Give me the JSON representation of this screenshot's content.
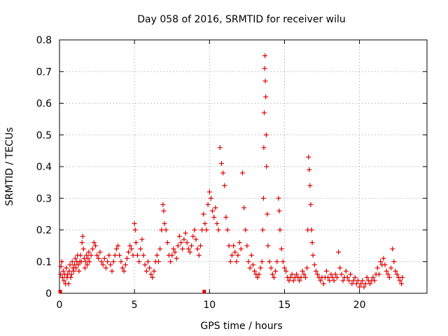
{
  "chart_data": {
    "type": "scatter",
    "title": "Day 058 of 2016, SRMTID for receiver wilu",
    "xlabel": "GPS time / hours",
    "ylabel": "SRMTID / TECUs",
    "xlim": [
      0,
      24.5
    ],
    "ylim": [
      0,
      0.8
    ],
    "x_ticks": [
      0,
      5,
      10,
      15,
      20
    ],
    "x_tick_labels": [
      "0",
      "5",
      "10",
      "15",
      "20"
    ],
    "y_ticks": [
      0,
      0.1,
      0.2,
      0.3,
      0.4,
      0.5,
      0.6,
      0.7,
      0.8
    ],
    "y_tick_labels": [
      "0",
      "0.1",
      "0.2",
      "0.3",
      "0.4",
      "0.5",
      "0.6",
      "0.7",
      "0.8"
    ],
    "grid": true,
    "marker": "plus",
    "color": "#e00000",
    "series": [
      {
        "name": "SRMTID",
        "points": [
          [
            0.05,
            0.0
          ],
          [
            0.08,
            0.06
          ],
          [
            0.1,
            0.085
          ],
          [
            0.15,
            0.1
          ],
          [
            0.2,
            0.05
          ],
          [
            0.25,
            0.07
          ],
          [
            0.3,
            0.04
          ],
          [
            0.35,
            0.06
          ],
          [
            0.4,
            0.03
          ],
          [
            0.45,
            0.08
          ],
          [
            0.5,
            0.05
          ],
          [
            0.55,
            0.06
          ],
          [
            0.6,
            0.03
          ],
          [
            0.65,
            0.07
          ],
          [
            0.7,
            0.09
          ],
          [
            0.75,
            0.05
          ],
          [
            0.8,
            0.06
          ],
          [
            0.85,
            0.1
          ],
          [
            0.9,
            0.08
          ],
          [
            0.95,
            0.07
          ],
          [
            1.0,
            0.09
          ],
          [
            1.05,
            0.11
          ],
          [
            1.1,
            0.08
          ],
          [
            1.15,
            0.1
          ],
          [
            1.2,
            0.12
          ],
          [
            1.25,
            0.09
          ],
          [
            1.3,
            0.07
          ],
          [
            1.35,
            0.1
          ],
          [
            1.4,
            0.12
          ],
          [
            1.45,
            0.1
          ],
          [
            1.5,
            0.16
          ],
          [
            1.55,
            0.18
          ],
          [
            1.6,
            0.14
          ],
          [
            1.65,
            0.11
          ],
          [
            1.7,
            0.08
          ],
          [
            1.75,
            0.1
          ],
          [
            1.8,
            0.12
          ],
          [
            1.85,
            0.09
          ],
          [
            1.9,
            0.11
          ],
          [
            1.95,
            0.13
          ],
          [
            2.0,
            0.1
          ],
          [
            2.1,
            0.12
          ],
          [
            2.2,
            0.14
          ],
          [
            2.3,
            0.16
          ],
          [
            2.4,
            0.15
          ],
          [
            2.5,
            0.12
          ],
          [
            2.6,
            0.11
          ],
          [
            2.7,
            0.13
          ],
          [
            2.8,
            0.1
          ],
          [
            2.9,
            0.09
          ],
          [
            3.0,
            0.11
          ],
          [
            3.1,
            0.08
          ],
          [
            3.2,
            0.1
          ],
          [
            3.3,
            0.12
          ],
          [
            3.4,
            0.09
          ],
          [
            3.5,
            0.07
          ],
          [
            3.6,
            0.1
          ],
          [
            3.7,
            0.12
          ],
          [
            3.8,
            0.14
          ],
          [
            3.9,
            0.15
          ],
          [
            4.0,
            0.12
          ],
          [
            4.1,
            0.1
          ],
          [
            4.2,
            0.08
          ],
          [
            4.3,
            0.07
          ],
          [
            4.4,
            0.09
          ],
          [
            4.5,
            0.11
          ],
          [
            4.6,
            0.13
          ],
          [
            4.7,
            0.15
          ],
          [
            4.8,
            0.14
          ],
          [
            4.9,
            0.12
          ],
          [
            5.0,
            0.22
          ],
          [
            5.05,
            0.2
          ],
          [
            5.1,
            0.16
          ],
          [
            5.2,
            0.12
          ],
          [
            5.3,
            0.1
          ],
          [
            5.4,
            0.14
          ],
          [
            5.5,
            0.17
          ],
          [
            5.6,
            0.12
          ],
          [
            5.7,
            0.09
          ],
          [
            5.8,
            0.07
          ],
          [
            5.9,
            0.1
          ],
          [
            6.0,
            0.08
          ],
          [
            6.1,
            0.06
          ],
          [
            6.2,
            0.05
          ],
          [
            6.3,
            0.07
          ],
          [
            6.4,
            0.1
          ],
          [
            6.5,
            0.12
          ],
          [
            6.6,
            0.1
          ],
          [
            6.7,
            0.14
          ],
          [
            6.8,
            0.2
          ],
          [
            6.9,
            0.28
          ],
          [
            6.95,
            0.26
          ],
          [
            7.0,
            0.22
          ],
          [
            7.1,
            0.2
          ],
          [
            7.2,
            0.16
          ],
          [
            7.3,
            0.12
          ],
          [
            7.4,
            0.1
          ],
          [
            7.5,
            0.12
          ],
          [
            7.6,
            0.14
          ],
          [
            7.7,
            0.13
          ],
          [
            7.8,
            0.11
          ],
          [
            7.9,
            0.15
          ],
          [
            8.0,
            0.18
          ],
          [
            8.1,
            0.16
          ],
          [
            8.2,
            0.14
          ],
          [
            8.3,
            0.17
          ],
          [
            8.4,
            0.19
          ],
          [
            8.5,
            0.16
          ],
          [
            8.6,
            0.14
          ],
          [
            8.7,
            0.13
          ],
          [
            8.8,
            0.15
          ],
          [
            8.9,
            0.18
          ],
          [
            9.0,
            0.2
          ],
          [
            9.1,
            0.17
          ],
          [
            9.2,
            0.14
          ],
          [
            9.3,
            0.12
          ],
          [
            9.4,
            0.15
          ],
          [
            9.5,
            0.2
          ],
          [
            9.6,
            0.25
          ],
          [
            9.65,
            0.0
          ],
          [
            9.7,
            0.22
          ],
          [
            9.8,
            0.2
          ],
          [
            9.9,
            0.28
          ],
          [
            10.0,
            0.32
          ],
          [
            10.1,
            0.3
          ],
          [
            10.2,
            0.26
          ],
          [
            10.3,
            0.24
          ],
          [
            10.4,
            0.27
          ],
          [
            10.5,
            0.22
          ],
          [
            10.6,
            0.2
          ],
          [
            10.7,
            0.46
          ],
          [
            10.8,
            0.41
          ],
          [
            10.9,
            0.38
          ],
          [
            11.0,
            0.34
          ],
          [
            11.1,
            0.24
          ],
          [
            11.2,
            0.2
          ],
          [
            11.3,
            0.15
          ],
          [
            11.4,
            0.1
          ],
          [
            11.5,
            0.12
          ],
          [
            11.6,
            0.15
          ],
          [
            11.7,
            0.13
          ],
          [
            11.8,
            0.1
          ],
          [
            11.9,
            0.12
          ],
          [
            12.0,
            0.16
          ],
          [
            12.1,
            0.14
          ],
          [
            12.2,
            0.38
          ],
          [
            12.3,
            0.27
          ],
          [
            12.4,
            0.2
          ],
          [
            12.5,
            0.15
          ],
          [
            12.6,
            0.1
          ],
          [
            12.7,
            0.08
          ],
          [
            12.8,
            0.12
          ],
          [
            12.9,
            0.09
          ],
          [
            13.0,
            0.07
          ],
          [
            13.1,
            0.06
          ],
          [
            13.2,
            0.05
          ],
          [
            13.3,
            0.06
          ],
          [
            13.4,
            0.08
          ],
          [
            13.5,
            0.1
          ],
          [
            13.55,
            0.2
          ],
          [
            13.6,
            0.3
          ],
          [
            13.62,
            0.46
          ],
          [
            13.65,
            0.57
          ],
          [
            13.68,
            0.71
          ],
          [
            13.7,
            0.75
          ],
          [
            13.72,
            0.67
          ],
          [
            13.75,
            0.62
          ],
          [
            13.78,
            0.5
          ],
          [
            13.8,
            0.4
          ],
          [
            13.85,
            0.25
          ],
          [
            13.9,
            0.15
          ],
          [
            14.0,
            0.1
          ],
          [
            14.1,
            0.08
          ],
          [
            14.2,
            0.06
          ],
          [
            14.3,
            0.05
          ],
          [
            14.4,
            0.07
          ],
          [
            14.5,
            0.1
          ],
          [
            14.6,
            0.3
          ],
          [
            14.65,
            0.26
          ],
          [
            14.7,
            0.2
          ],
          [
            14.8,
            0.14
          ],
          [
            14.9,
            0.1
          ],
          [
            15.0,
            0.08
          ],
          [
            15.1,
            0.07
          ],
          [
            15.2,
            0.05
          ],
          [
            15.3,
            0.04
          ],
          [
            15.4,
            0.05
          ],
          [
            15.5,
            0.06
          ],
          [
            15.6,
            0.04
          ],
          [
            15.7,
            0.05
          ],
          [
            15.8,
            0.06
          ],
          [
            15.9,
            0.05
          ],
          [
            16.0,
            0.04
          ],
          [
            16.1,
            0.05
          ],
          [
            16.2,
            0.07
          ],
          [
            16.3,
            0.06
          ],
          [
            16.4,
            0.05
          ],
          [
            16.5,
            0.08
          ],
          [
            16.55,
            0.2
          ],
          [
            16.6,
            0.43
          ],
          [
            16.65,
            0.39
          ],
          [
            16.7,
            0.34
          ],
          [
            16.75,
            0.28
          ],
          [
            16.8,
            0.2
          ],
          [
            16.85,
            0.16
          ],
          [
            16.9,
            0.12
          ],
          [
            17.0,
            0.09
          ],
          [
            17.1,
            0.07
          ],
          [
            17.2,
            0.06
          ],
          [
            17.3,
            0.05
          ],
          [
            17.4,
            0.04
          ],
          [
            17.5,
            0.05
          ],
          [
            17.6,
            0.03
          ],
          [
            17.7,
            0.05
          ],
          [
            17.8,
            0.07
          ],
          [
            17.9,
            0.05
          ],
          [
            18.0,
            0.04
          ],
          [
            18.1,
            0.06
          ],
          [
            18.2,
            0.05
          ],
          [
            18.3,
            0.04
          ],
          [
            18.4,
            0.06
          ],
          [
            18.5,
            0.05
          ],
          [
            18.6,
            0.13
          ],
          [
            18.7,
            0.08
          ],
          [
            18.8,
            0.06
          ],
          [
            18.9,
            0.04
          ],
          [
            19.0,
            0.05
          ],
          [
            19.1,
            0.07
          ],
          [
            19.2,
            0.05
          ],
          [
            19.3,
            0.04
          ],
          [
            19.4,
            0.06
          ],
          [
            19.5,
            0.03
          ],
          [
            19.6,
            0.04
          ],
          [
            19.7,
            0.05
          ],
          [
            19.8,
            0.03
          ],
          [
            19.9,
            0.04
          ],
          [
            20.0,
            0.02
          ],
          [
            20.1,
            0.03
          ],
          [
            20.2,
            0.04
          ],
          [
            20.3,
            0.02
          ],
          [
            20.4,
            0.03
          ],
          [
            20.5,
            0.05
          ],
          [
            20.6,
            0.04
          ],
          [
            20.7,
            0.03
          ],
          [
            20.8,
            0.04
          ],
          [
            20.9,
            0.05
          ],
          [
            21.0,
            0.04
          ],
          [
            21.1,
            0.06
          ],
          [
            21.2,
            0.08
          ],
          [
            21.3,
            0.06
          ],
          [
            21.4,
            0.1
          ],
          [
            21.5,
            0.09
          ],
          [
            21.6,
            0.11
          ],
          [
            21.7,
            0.09
          ],
          [
            21.8,
            0.07
          ],
          [
            21.9,
            0.06
          ],
          [
            22.0,
            0.05
          ],
          [
            22.1,
            0.08
          ],
          [
            22.2,
            0.14
          ],
          [
            22.3,
            0.1
          ],
          [
            22.4,
            0.07
          ],
          [
            22.5,
            0.06
          ],
          [
            22.6,
            0.05
          ],
          [
            22.7,
            0.04
          ],
          [
            22.8,
            0.03
          ],
          [
            22.85,
            0.05
          ]
        ]
      }
    ]
  }
}
